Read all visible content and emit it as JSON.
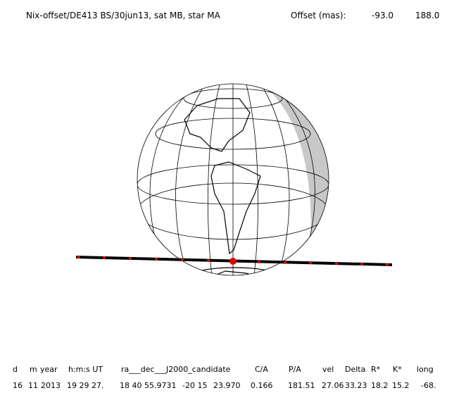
{
  "header": {
    "title": "Nix-offset/DE413 BS/30jun13, sat MB, star MA",
    "offset_label": "Offset (mas):",
    "offset_ra": "-93.0",
    "offset_dec": "188.0"
  },
  "table": {
    "header": [
      "d",
      "m",
      "year",
      "h:m:s UT",
      "ra___dec___J2000_candidate",
      "C/A",
      "P/A",
      "vel",
      "Delta",
      "R*",
      "K*",
      "long"
    ],
    "row": [
      "16",
      "11",
      "2013",
      "19 29 27.",
      "18 40 55.9731",
      "-20 15",
      "23.970",
      "0.166",
      "181.51",
      "27.06",
      "33.23",
      "18.2",
      "15.2",
      "-68."
    ]
  }
}
